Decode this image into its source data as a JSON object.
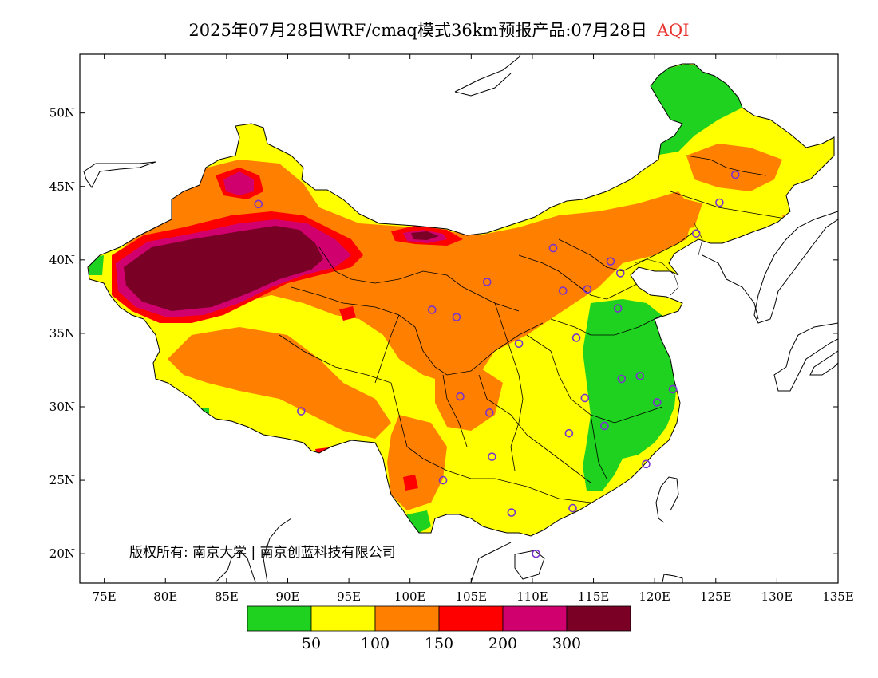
{
  "title": {
    "main": "2025年07月28日WRF/cmaq模式36km预报产品:07月28日",
    "variable": "AQI",
    "variable_color": "#e8332d"
  },
  "map": {
    "lon_range": [
      73,
      135
    ],
    "lat_range": [
      18,
      54
    ],
    "x_ticks": [
      "75E",
      "80E",
      "85E",
      "90E",
      "95E",
      "100E",
      "105E",
      "110E",
      "115E",
      "120E",
      "125E",
      "130E",
      "135E"
    ],
    "y_ticks": [
      "50N",
      "45N",
      "40N",
      "35N",
      "30N",
      "25N",
      "20N"
    ],
    "copyright": "版权所有: 南京大学  |  南京创蓝科技有限公司",
    "colors": {
      "good": "#1fd21f",
      "moderate": "#ffff00",
      "sensitive": "#ff7f00",
      "unhealthy": "#ff0000",
      "very_unhealthy": "#d0006e",
      "hazardous": "#7a0025"
    }
  },
  "legend": {
    "colors": [
      "#1fd21f",
      "#ffff00",
      "#ff7f00",
      "#ff0000",
      "#d0006e",
      "#7a0025"
    ],
    "labels": [
      "50",
      "100",
      "150",
      "200",
      "300"
    ]
  },
  "stations": [
    {
      "lon": 87.6,
      "lat": 43.8
    },
    {
      "lon": 91.1,
      "lat": 29.7
    },
    {
      "lon": 101.8,
      "lat": 36.6
    },
    {
      "lon": 103.8,
      "lat": 36.1
    },
    {
      "lon": 106.3,
      "lat": 38.5
    },
    {
      "lon": 111.7,
      "lat": 40.8
    },
    {
      "lon": 112.5,
      "lat": 37.9
    },
    {
      "lon": 114.5,
      "lat": 38.0
    },
    {
      "lon": 116.4,
      "lat": 39.9
    },
    {
      "lon": 117.2,
      "lat": 39.1
    },
    {
      "lon": 117.0,
      "lat": 36.7
    },
    {
      "lon": 113.6,
      "lat": 34.7
    },
    {
      "lon": 108.9,
      "lat": 34.3
    },
    {
      "lon": 104.1,
      "lat": 30.7
    },
    {
      "lon": 106.5,
      "lat": 29.6
    },
    {
      "lon": 106.7,
      "lat": 26.6
    },
    {
      "lon": 102.7,
      "lat": 25.0
    },
    {
      "lon": 108.3,
      "lat": 22.8
    },
    {
      "lon": 113.3,
      "lat": 23.1
    },
    {
      "lon": 110.3,
      "lat": 20.0
    },
    {
      "lon": 113.0,
      "lat": 28.2
    },
    {
      "lon": 114.3,
      "lat": 30.6
    },
    {
      "lon": 115.9,
      "lat": 28.7
    },
    {
      "lon": 117.3,
      "lat": 31.9
    },
    {
      "lon": 118.8,
      "lat": 32.1
    },
    {
      "lon": 120.2,
      "lat": 30.3
    },
    {
      "lon": 121.5,
      "lat": 31.2
    },
    {
      "lon": 119.3,
      "lat": 26.1
    },
    {
      "lon": 123.4,
      "lat": 41.8
    },
    {
      "lon": 125.3,
      "lat": 43.9
    },
    {
      "lon": 126.6,
      "lat": 45.8
    }
  ]
}
